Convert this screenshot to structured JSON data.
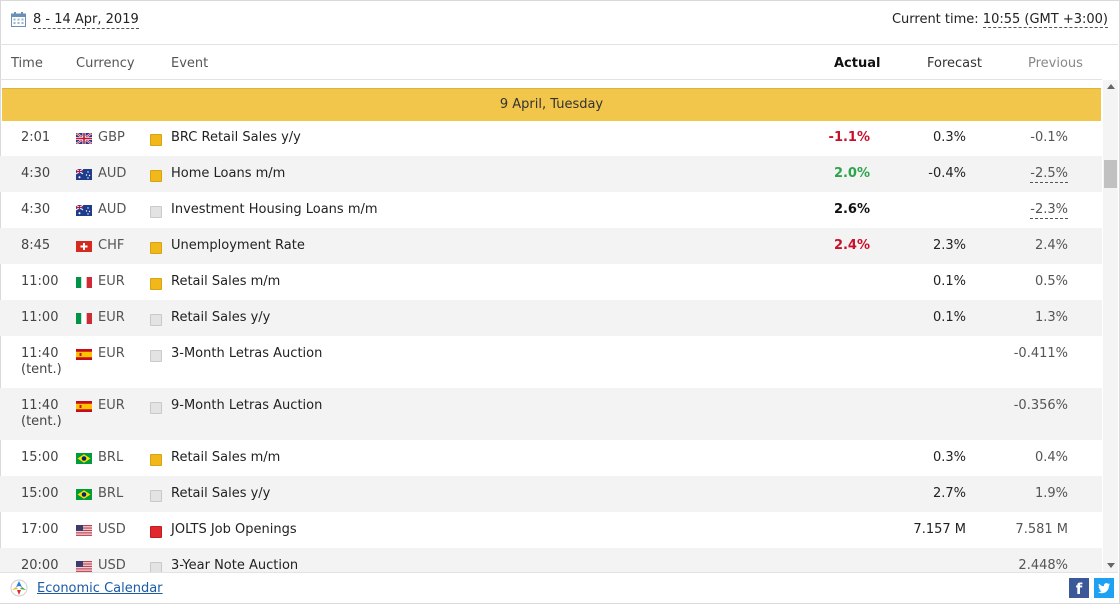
{
  "header": {
    "date_range": "8 - 14 Apr, 2019",
    "current_time_label": "Current time: ",
    "current_time_value": "10:55 (GMT +3:00)"
  },
  "columns": {
    "time": "Time",
    "currency": "Currency",
    "event": "Event",
    "actual": "Actual",
    "forecast": "Forecast",
    "previous": "Previous"
  },
  "day_label": "9 April, Tuesday",
  "events": [
    {
      "time": "2:01",
      "tent": "",
      "flag": "GB",
      "currency": "GBP",
      "importance": "medium",
      "event": "BRC Retail Sales y/y",
      "actual": "-1.1%",
      "actual_trend": "negative",
      "forecast": "0.3%",
      "previous": "-0.1%",
      "previous_revised": false
    },
    {
      "time": "4:30",
      "tent": "",
      "flag": "AU",
      "currency": "AUD",
      "importance": "medium",
      "event": "Home Loans m/m",
      "actual": "2.0%",
      "actual_trend": "positive",
      "forecast": "-0.4%",
      "previous": "-2.5%",
      "previous_revised": true
    },
    {
      "time": "4:30",
      "tent": "",
      "flag": "AU",
      "currency": "AUD",
      "importance": "low",
      "event": "Investment Housing Loans m/m",
      "actual": "2.6%",
      "actual_trend": "neutral",
      "forecast": "",
      "previous": "-2.3%",
      "previous_revised": true
    },
    {
      "time": "8:45",
      "tent": "",
      "flag": "CH",
      "currency": "CHF",
      "importance": "medium",
      "event": "Unemployment Rate",
      "actual": "2.4%",
      "actual_trend": "negative",
      "forecast": "2.3%",
      "previous": "2.4%",
      "previous_revised": false
    },
    {
      "time": "11:00",
      "tent": "",
      "flag": "IT",
      "currency": "EUR",
      "importance": "medium",
      "event": "Retail Sales m/m",
      "actual": "",
      "actual_trend": "neutral",
      "forecast": "0.1%",
      "previous": "0.5%",
      "previous_revised": false
    },
    {
      "time": "11:00",
      "tent": "",
      "flag": "IT",
      "currency": "EUR",
      "importance": "low",
      "event": "Retail Sales y/y",
      "actual": "",
      "actual_trend": "neutral",
      "forecast": "0.1%",
      "previous": "1.3%",
      "previous_revised": false
    },
    {
      "time": "11:40",
      "tent": "(tent.)",
      "flag": "ES",
      "currency": "EUR",
      "importance": "low",
      "event": "3-Month Letras Auction",
      "actual": "",
      "actual_trend": "neutral",
      "forecast": "",
      "previous": "-0.411%",
      "previous_revised": false
    },
    {
      "time": "11:40",
      "tent": "(tent.)",
      "flag": "ES",
      "currency": "EUR",
      "importance": "low",
      "event": "9-Month Letras Auction",
      "actual": "",
      "actual_trend": "neutral",
      "forecast": "",
      "previous": "-0.356%",
      "previous_revised": false
    },
    {
      "time": "15:00",
      "tent": "",
      "flag": "BR",
      "currency": "BRL",
      "importance": "medium",
      "event": "Retail Sales m/m",
      "actual": "",
      "actual_trend": "neutral",
      "forecast": "0.3%",
      "previous": "0.4%",
      "previous_revised": false
    },
    {
      "time": "15:00",
      "tent": "",
      "flag": "BR",
      "currency": "BRL",
      "importance": "low",
      "event": "Retail Sales y/y",
      "actual": "",
      "actual_trend": "neutral",
      "forecast": "2.7%",
      "previous": "1.9%",
      "previous_revised": false
    },
    {
      "time": "17:00",
      "tent": "",
      "flag": "US",
      "currency": "USD",
      "importance": "high",
      "event": "JOLTS Job Openings",
      "actual": "",
      "actual_trend": "neutral",
      "forecast": "7.157 M",
      "previous": "7.581 M",
      "previous_revised": false
    },
    {
      "time": "20:00",
      "tent": "",
      "flag": "US",
      "currency": "USD",
      "importance": "low",
      "event": "3-Year Note Auction",
      "actual": "",
      "actual_trend": "neutral",
      "forecast": "",
      "previous": "2.448%",
      "previous_revised": false
    }
  ],
  "footer": {
    "link": "Economic Calendar",
    "facebook_glyph": "f"
  },
  "colors": {
    "day_band": "#f2c54b",
    "actual_negative": "#c9102b",
    "actual_positive": "#2ba44a",
    "importance_medium": "#f0b81a",
    "importance_high": "#e2282f",
    "importance_low": "#e3e3e3",
    "link": "#1a5aa6"
  }
}
